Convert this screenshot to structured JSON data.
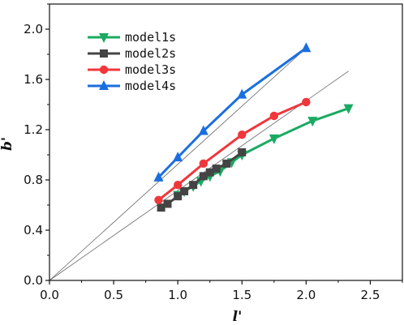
{
  "chart_data": {
    "type": "line",
    "xlabel": "l'",
    "ylabel": "b'",
    "xlim": [
      0,
      2.75
    ],
    "ylim": [
      0,
      2.2
    ],
    "x_ticks": [
      "0.0",
      "0.5",
      "1.0",
      "1.5",
      "2.0",
      "2.5"
    ],
    "y_ticks": [
      "0.0",
      "0.4",
      "0.8",
      "1.2",
      "1.6",
      "2.0"
    ],
    "grid": false,
    "legend_position": "top-left",
    "reference_lines": [
      {
        "slope": 0.925,
        "color": "#666666"
      },
      {
        "slope": 0.715,
        "color": "#666666"
      }
    ],
    "series": [
      {
        "name": "model1s",
        "color": "#1aaa63",
        "marker": "triangle-down",
        "x": [
          1.0,
          1.05,
          1.12,
          1.18,
          1.25,
          1.33,
          1.42,
          1.5,
          1.75,
          2.05,
          2.33
        ],
        "y": [
          0.68,
          0.71,
          0.75,
          0.79,
          0.83,
          0.87,
          0.94,
          1.0,
          1.13,
          1.27,
          1.37
        ]
      },
      {
        "name": "model2s",
        "color": "#444444",
        "marker": "square",
        "x": [
          0.87,
          0.92,
          1.0,
          1.05,
          1.12,
          1.2,
          1.25,
          1.3,
          1.38,
          1.5
        ],
        "y": [
          0.58,
          0.61,
          0.67,
          0.71,
          0.76,
          0.83,
          0.86,
          0.89,
          0.93,
          1.02
        ]
      },
      {
        "name": "model3s",
        "color": "#f0373c",
        "marker": "circle",
        "x": [
          0.85,
          1.0,
          1.2,
          1.5,
          1.75,
          2.0
        ],
        "y": [
          0.64,
          0.76,
          0.93,
          1.16,
          1.31,
          1.42
        ]
      },
      {
        "name": "model4s",
        "color": "#1a6fdf",
        "marker": "triangle-up",
        "x": [
          0.85,
          1.0,
          1.2,
          1.5,
          2.0
        ],
        "y": [
          0.82,
          0.98,
          1.19,
          1.48,
          1.85
        ]
      }
    ]
  }
}
